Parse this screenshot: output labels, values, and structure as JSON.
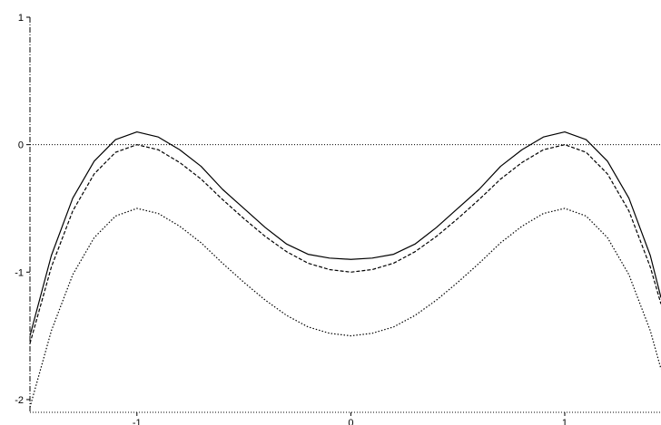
{
  "chart_data": {
    "type": "line",
    "title": "",
    "xlabel": "",
    "ylabel": "",
    "xlim": [
      -1.5,
      1.45
    ],
    "ylim": [
      -2.1,
      1.0
    ],
    "x_ticks": [
      -1,
      0,
      1
    ],
    "x_tick_labels": [
      "-1",
      "0",
      "1"
    ],
    "y_ticks": [
      1,
      0,
      -1,
      -2
    ],
    "y_tick_labels": [
      "1",
      "0",
      "-1",
      "-2"
    ],
    "grid": false,
    "legend": "none",
    "reference_line": {
      "y": 0,
      "style": "dotted"
    },
    "x": [
      -1.5,
      -1.4,
      -1.3,
      -1.2,
      -1.1,
      -1.0,
      -0.9,
      -0.8,
      -0.7,
      -0.6,
      -0.5,
      -0.4,
      -0.3,
      -0.2,
      -0.1,
      0.0,
      0.1,
      0.2,
      0.3,
      0.4,
      0.5,
      0.6,
      0.7,
      0.8,
      0.9,
      1.0,
      1.1,
      1.2,
      1.3,
      1.4,
      1.45
    ],
    "series": [
      {
        "style": "solid",
        "color": "#000000",
        "values": [
          -1.5,
          -0.87,
          -0.42,
          -0.13,
          0.04,
          0.1,
          0.06,
          -0.04,
          -0.17,
          -0.35,
          -0.5,
          -0.65,
          -0.78,
          -0.86,
          -0.89,
          -0.9,
          -0.89,
          -0.86,
          -0.78,
          -0.65,
          -0.5,
          -0.35,
          -0.17,
          -0.04,
          0.06,
          0.1,
          0.04,
          -0.13,
          -0.42,
          -0.87,
          -1.2
        ]
      },
      {
        "style": "dashed",
        "color": "#000000",
        "values": [
          -1.56,
          -0.96,
          -0.52,
          -0.23,
          -0.06,
          0.0,
          -0.04,
          -0.14,
          -0.27,
          -0.43,
          -0.58,
          -0.72,
          -0.84,
          -0.93,
          -0.98,
          -1.0,
          -0.98,
          -0.93,
          -0.84,
          -0.72,
          -0.58,
          -0.43,
          -0.27,
          -0.14,
          -0.04,
          0.0,
          -0.06,
          -0.23,
          -0.52,
          -0.96,
          -1.25
        ]
      },
      {
        "style": "dotted",
        "color": "#000000",
        "values": [
          -2.06,
          -1.46,
          -1.02,
          -0.73,
          -0.56,
          -0.5,
          -0.54,
          -0.64,
          -0.77,
          -0.93,
          -1.08,
          -1.22,
          -1.34,
          -1.43,
          -1.48,
          -1.5,
          -1.48,
          -1.43,
          -1.34,
          -1.22,
          -1.08,
          -0.93,
          -0.77,
          -0.64,
          -0.54,
          -0.5,
          -0.56,
          -0.73,
          -1.02,
          -1.46,
          -1.76
        ]
      }
    ]
  }
}
